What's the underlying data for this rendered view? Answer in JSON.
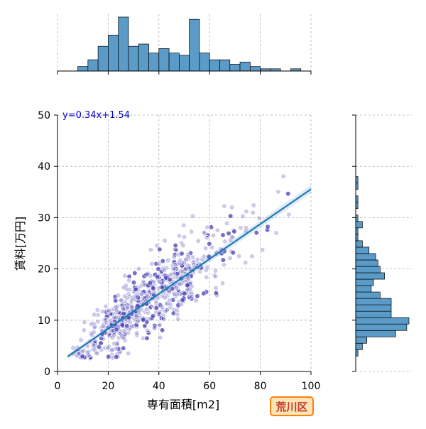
{
  "chart_data": {
    "type": "scatter",
    "xlabel": "専有面積[m2]",
    "ylabel": "賃料[万円]",
    "xlim": [
      0,
      100
    ],
    "ylim": [
      0,
      50
    ],
    "x_ticks": [
      0,
      20,
      40,
      60,
      80,
      100
    ],
    "y_ticks": [
      0,
      10,
      20,
      30,
      40,
      50
    ],
    "grid": true,
    "regression": {
      "label": "y=0.34x+1.54",
      "slope": 0.34,
      "intercept": 1.54,
      "x_range": [
        4,
        100
      ]
    },
    "badge": "荒川区",
    "colors": {
      "points": "#4a3fb5",
      "fit_line": "#1f77b4",
      "hist_fill": "#5a9bc8",
      "badge_fill": "#ffe4b5",
      "badge_border": "#ff7f0e",
      "badge_text": "#c0392b",
      "equation_text": "#0000cc"
    },
    "scatter_clusters": [
      {
        "cx": 22,
        "cy": 9,
        "sx": 8,
        "sy": 3,
        "n": 160
      },
      {
        "cx": 30,
        "cy": 12,
        "sx": 8,
        "sy": 3.5,
        "n": 200
      },
      {
        "cx": 40,
        "cy": 15,
        "sx": 8,
        "sy": 4,
        "n": 130
      },
      {
        "cx": 50,
        "cy": 20,
        "sx": 3,
        "sy": 4,
        "n": 90
      },
      {
        "cx": 60,
        "cy": 22,
        "sx": 7,
        "sy": 5,
        "n": 60
      },
      {
        "cx": 75,
        "cy": 28,
        "sx": 10,
        "sy": 5,
        "n": 25
      }
    ],
    "x_histogram": {
      "bin_width": 4,
      "bins": [
        {
          "x0": 8,
          "count": 2
        },
        {
          "x0": 12,
          "count": 5
        },
        {
          "x0": 16,
          "count": 11
        },
        {
          "x0": 20,
          "count": 16
        },
        {
          "x0": 24,
          "count": 24
        },
        {
          "x0": 28,
          "count": 11
        },
        {
          "x0": 32,
          "count": 12
        },
        {
          "x0": 36,
          "count": 8
        },
        {
          "x0": 40,
          "count": 10
        },
        {
          "x0": 44,
          "count": 8
        },
        {
          "x0": 48,
          "count": 7
        },
        {
          "x0": 52,
          "count": 23
        },
        {
          "x0": 56,
          "count": 8
        },
        {
          "x0": 60,
          "count": 5
        },
        {
          "x0": 64,
          "count": 5
        },
        {
          "x0": 68,
          "count": 3
        },
        {
          "x0": 72,
          "count": 4
        },
        {
          "x0": 76,
          "count": 2
        },
        {
          "x0": 80,
          "count": 1
        },
        {
          "x0": 84,
          "count": 1
        },
        {
          "x0": 88,
          "count": 0
        },
        {
          "x0": 92,
          "count": 1
        }
      ]
    },
    "y_histogram": {
      "bin_width": 1.25,
      "bins": [
        {
          "y0": 3,
          "count": 1
        },
        {
          "y0": 4.25,
          "count": 3
        },
        {
          "y0": 5.5,
          "count": 5
        },
        {
          "y0": 6.75,
          "count": 18
        },
        {
          "y0": 8,
          "count": 23
        },
        {
          "y0": 9.25,
          "count": 24
        },
        {
          "y0": 10.5,
          "count": 16
        },
        {
          "y0": 11.75,
          "count": 16
        },
        {
          "y0": 13,
          "count": 16
        },
        {
          "y0": 14.25,
          "count": 11
        },
        {
          "y0": 15.5,
          "count": 7
        },
        {
          "y0": 16.75,
          "count": 8
        },
        {
          "y0": 18,
          "count": 13
        },
        {
          "y0": 19.25,
          "count": 11
        },
        {
          "y0": 20.5,
          "count": 10
        },
        {
          "y0": 21.75,
          "count": 9
        },
        {
          "y0": 23,
          "count": 6
        },
        {
          "y0": 24.25,
          "count": 3
        },
        {
          "y0": 25.5,
          "count": 1
        },
        {
          "y0": 26.75,
          "count": 1
        },
        {
          "y0": 28,
          "count": 3
        },
        {
          "y0": 29.25,
          "count": 1
        },
        {
          "y0": 30.5,
          "count": 0
        },
        {
          "y0": 31.75,
          "count": 1
        },
        {
          "y0": 33,
          "count": 1
        },
        {
          "y0": 34.25,
          "count": 0
        },
        {
          "y0": 35.5,
          "count": 1
        },
        {
          "y0": 36.75,
          "count": 1
        }
      ]
    }
  }
}
